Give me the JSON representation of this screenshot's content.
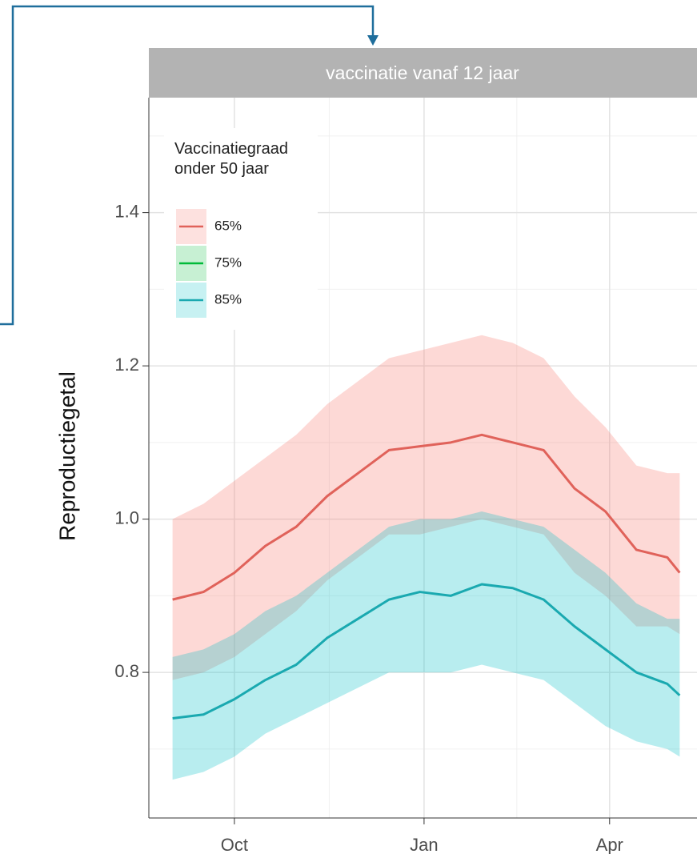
{
  "chart_data": {
    "type": "line",
    "strip_title": "vaccinatie vanaf 12 jaar",
    "y_label": "Reproductiegetal",
    "legend_title": "Vaccinatiegraad\nonder 50 jaar",
    "x": [
      -30,
      -15,
      0,
      15,
      30,
      45,
      60,
      75,
      90,
      105,
      120,
      135,
      150,
      165,
      180,
      195,
      210,
      216
    ],
    "xlim": [
      -41.5,
      224.4
    ],
    "xticks": [
      {
        "value": 0,
        "label": "Oct"
      },
      {
        "value": 92,
        "label": "Jan"
      },
      {
        "value": 182,
        "label": "Apr"
      }
    ],
    "x_minor_grid": [
      46,
      137
    ],
    "ylim": [
      0.61,
      1.55
    ],
    "yticks": [
      0.8,
      {
        "value": 1,
        "label": "1.0"
      },
      1.2,
      1.4
    ],
    "y_minor_grid": [
      0.7,
      0.9,
      1.1,
      1.3,
      1.5
    ],
    "grid": true,
    "series": [
      {
        "name": "65%",
        "color": "#e0625a",
        "band_color": "#f8766d",
        "values": [
          0.895,
          0.905,
          0.93,
          0.965,
          0.99,
          1.03,
          1.06,
          1.09,
          1.095,
          1.1,
          1.11,
          1.1,
          1.09,
          1.04,
          1.01,
          0.96,
          0.95,
          0.93
        ],
        "lower": [
          0.79,
          0.8,
          0.82,
          0.85,
          0.88,
          0.92,
          0.95,
          0.98,
          0.98,
          0.99,
          1.0,
          0.99,
          0.98,
          0.93,
          0.9,
          0.86,
          0.86,
          0.85
        ],
        "upper": [
          1.0,
          1.02,
          1.05,
          1.08,
          1.11,
          1.15,
          1.18,
          1.21,
          1.22,
          1.23,
          1.24,
          1.23,
          1.21,
          1.16,
          1.12,
          1.07,
          1.06,
          1.06
        ]
      },
      {
        "name": "75%",
        "color": "#00ba38"
      },
      {
        "name": "85%",
        "color": "#1aa9b0",
        "band_color": "#00bfc4",
        "values": [
          0.74,
          0.745,
          0.765,
          0.79,
          0.81,
          0.845,
          0.87,
          0.895,
          0.905,
          0.9,
          0.915,
          0.91,
          0.895,
          0.86,
          0.83,
          0.8,
          0.785,
          0.77
        ],
        "lower": [
          0.66,
          0.67,
          0.69,
          0.72,
          0.74,
          0.76,
          0.78,
          0.8,
          0.8,
          0.8,
          0.81,
          0.8,
          0.79,
          0.76,
          0.73,
          0.71,
          0.7,
          0.69
        ],
        "upper": [
          0.82,
          0.83,
          0.85,
          0.88,
          0.9,
          0.93,
          0.96,
          0.99,
          1.0,
          1.0,
          1.01,
          1.0,
          0.99,
          0.96,
          0.93,
          0.89,
          0.87,
          0.87
        ]
      }
    ]
  }
}
